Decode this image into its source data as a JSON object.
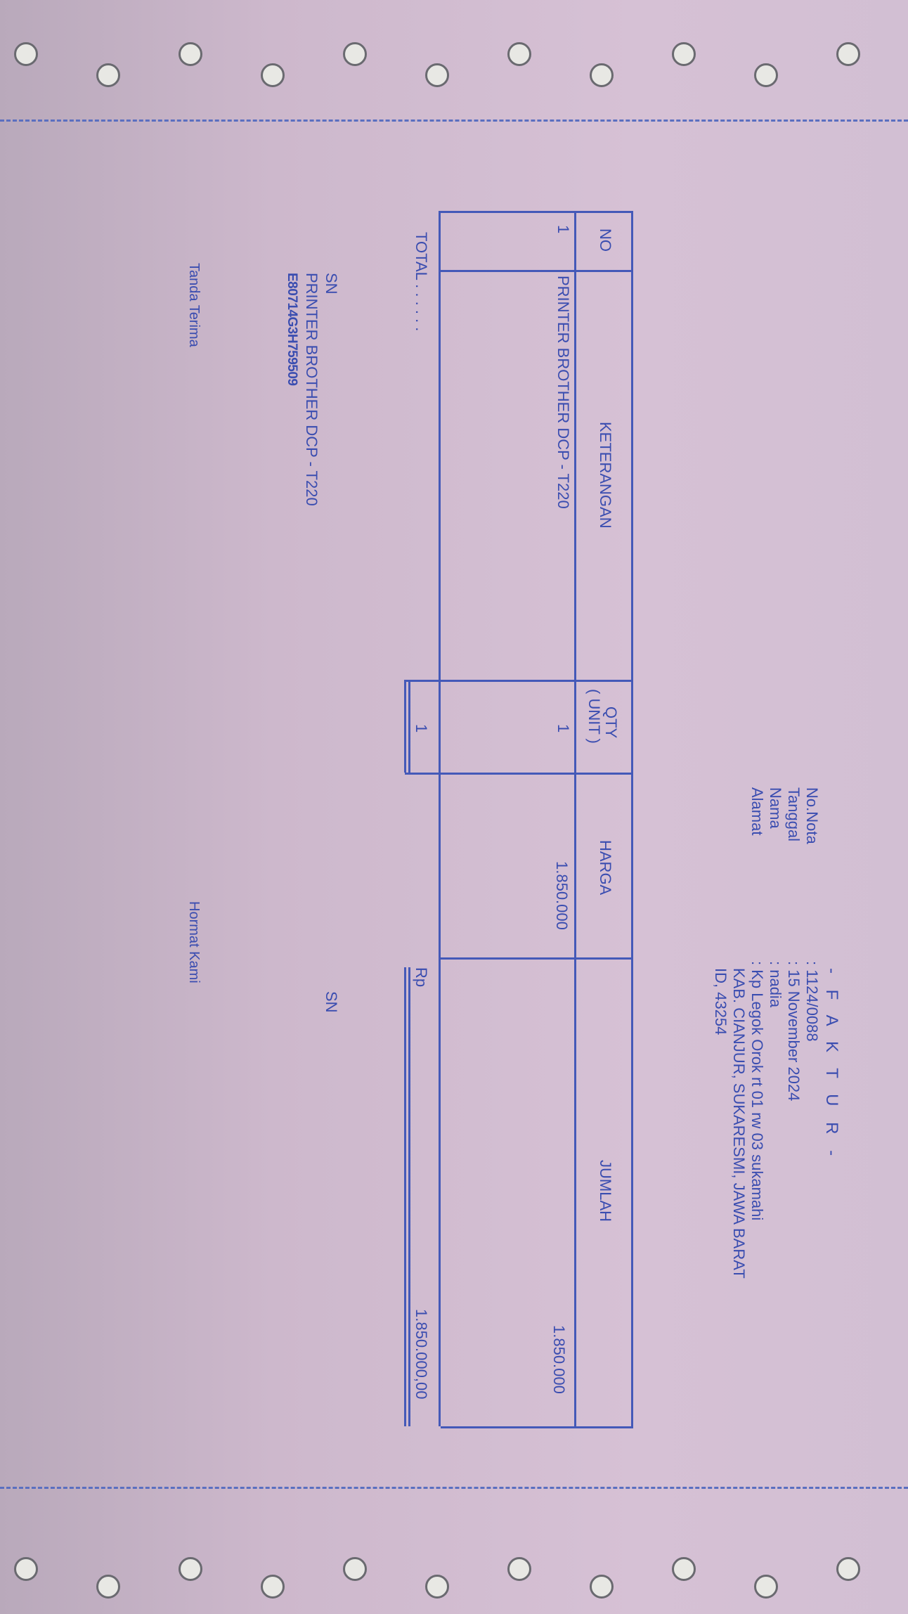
{
  "header": {
    "title": "- F A K T U R -",
    "fields": [
      {
        "label": "No.Nota",
        "value": ": 1124/0088"
      },
      {
        "label": "Tanggal",
        "value": ": 15 November 2024"
      },
      {
        "label": "Nama",
        "value": ": nadia"
      },
      {
        "label": "Alamat",
        "value": ": Kp Legok Orok rt 01 rw 03 sukamahi"
      }
    ],
    "address_line2": "KAB. CIANJUR, SUKARESMI, JAWA BARAT",
    "address_line3": "ID, 43254"
  },
  "table": {
    "columns": [
      "NO",
      "KETERANGAN",
      "QTY",
      "( UNIT )",
      "HARGA",
      "JUMLAH"
    ],
    "rows": [
      {
        "no": "1",
        "keterangan": "PRINTER BROTHER DCP - T220",
        "qty": "1",
        "harga": "1.850.000",
        "jumlah": "1.850.000"
      }
    ],
    "total_label": "TOTAL . . . . . .",
    "total_qty": "1",
    "total_currency": "Rp",
    "total_amount": "1.850.000,00"
  },
  "notes": {
    "sn_label": "SN",
    "product": "PRINTER BROTHER DCP - T220",
    "serial": "E80714G3H759509",
    "sn_label_right": "SN"
  },
  "signatures": {
    "left": "Tanda Terima",
    "right": "Hormat Kami"
  },
  "colors": {
    "ink": "#3a4db0",
    "paper": "#d6c1d5"
  }
}
